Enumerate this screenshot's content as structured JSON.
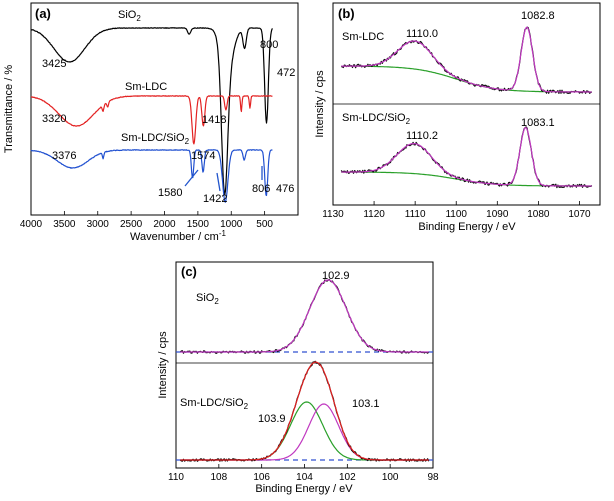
{
  "chart_data": [
    {
      "panel": "(a)",
      "type": "line",
      "xlabel": "Wavenumber / cm",
      "xlabel_sup": "-1",
      "ylabel": "Transmittance / %",
      "xlim": [
        4000,
        0
      ],
      "x_ticks": [
        4000,
        3500,
        3000,
        2500,
        2000,
        1500,
        1000,
        500
      ],
      "series": [
        {
          "name": "SiO2",
          "label_main": "SiO",
          "label_sub": "2",
          "color": "#000000",
          "annotations": [
            {
              "text": "3425",
              "x": 3425
            },
            {
              "text": "800",
              "x": 800
            },
            {
              "text": "472",
              "x": 472
            }
          ]
        },
        {
          "name": "Sm-LDC",
          "label_main": "Sm-LDC",
          "label_sub": "",
          "color": "#e32222",
          "annotations": [
            {
              "text": "3320",
              "x": 3320
            },
            {
              "text": "1418",
              "x": 1418
            }
          ]
        },
        {
          "name": "Sm-LDC/SiO2",
          "label_main": "Sm-LDC/SiO",
          "label_sub": "2",
          "color": "#2050d0",
          "annotations": [
            {
              "text": "3376",
              "x": 3376
            },
            {
              "text": "1574",
              "x": 1574
            },
            {
              "text": "1580",
              "x": 1580
            },
            {
              "text": "1422",
              "x": 1422
            },
            {
              "text": "806",
              "x": 806
            },
            {
              "text": "476",
              "x": 476
            }
          ]
        }
      ]
    },
    {
      "panel": "(b)",
      "type": "line",
      "xlabel": "Binding Energy / eV",
      "ylabel": "Intensity / cps",
      "xlim": [
        1130,
        1065
      ],
      "x_ticks": [
        1130,
        1120,
        1110,
        1100,
        1090,
        1080,
        1070
      ],
      "subplots": [
        {
          "name": "Sm-LDC",
          "peaks": [
            {
              "text": "1110.0",
              "x": 1110.0
            },
            {
              "text": "1082.8",
              "x": 1082.8
            }
          ]
        },
        {
          "name": "Sm-LDC/SiO2",
          "label_main": "Sm-LDC/SiO",
          "label_sub": "2",
          "peaks": [
            {
              "text": "1110.2",
              "x": 1110.2
            },
            {
              "text": "1083.1",
              "x": 1083.1
            }
          ]
        }
      ]
    },
    {
      "panel": "(c)",
      "type": "line",
      "xlabel": "Binding Energy / eV",
      "ylabel": "Intensity / cps",
      "xlim": [
        110,
        98
      ],
      "x_ticks": [
        110,
        108,
        106,
        104,
        102,
        100,
        98
      ],
      "subplots": [
        {
          "name": "SiO2",
          "label_main": "SiO",
          "label_sub": "2",
          "peaks": [
            {
              "text": "102.9",
              "x": 102.9
            }
          ]
        },
        {
          "name": "Sm-LDC/SiO2",
          "label_main": "Sm-LDC/SiO",
          "label_sub": "2",
          "peaks": [
            {
              "text": "103.9",
              "x": 103.9
            },
            {
              "text": "103.1",
              "x": 103.1
            }
          ]
        }
      ]
    }
  ]
}
